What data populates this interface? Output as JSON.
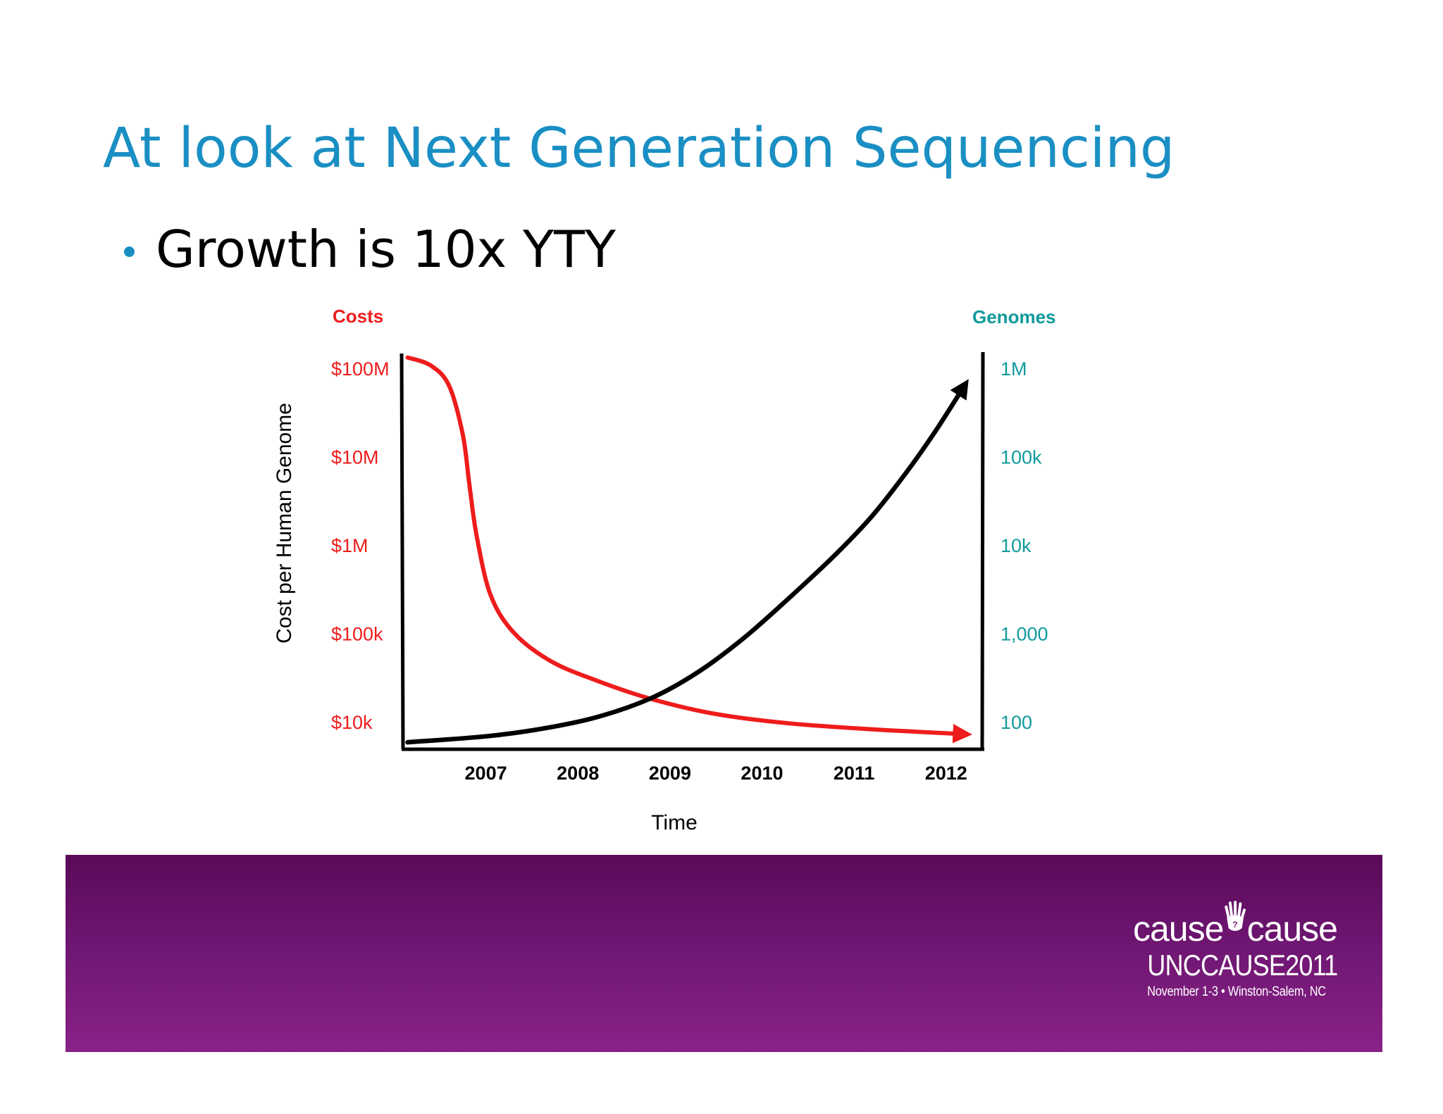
{
  "slide": {
    "title": "At look at Next Generation Sequencing",
    "bullet": "Growth is 10x YTY"
  },
  "footer": {
    "logo_word_left": "cause",
    "logo_word_right": "cause",
    "logo_event": "UNCCAUSE2011",
    "logo_date": "November 1-3 • Winston-Salem, NC",
    "colors": {
      "top": "#5a0a58",
      "bottom": "#892287"
    }
  },
  "chart_data": {
    "type": "line",
    "x_title": "Time",
    "x_ticks": [
      2007,
      2008,
      2009,
      2010,
      2011,
      2012
    ],
    "x_range": [
      2006.1,
      2012.4
    ],
    "left_axis": {
      "header": "Costs",
      "title": "Cost per Human Genome",
      "scale": "log",
      "range": [
        5000,
        150000000
      ],
      "ticks": [
        {
          "value": 100000000,
          "label": "$100M"
        },
        {
          "value": 10000000,
          "label": "$10M"
        },
        {
          "value": 1000000,
          "label": "$1M"
        },
        {
          "value": 100000,
          "label": "$100k"
        },
        {
          "value": 10000,
          "label": "$10k"
        }
      ],
      "color": "#ee1c1c"
    },
    "right_axis": {
      "header": "Genomes",
      "scale": "log",
      "range": [
        50,
        1500000
      ],
      "ticks": [
        {
          "value": 1000000,
          "label": "1M"
        },
        {
          "value": 100000,
          "label": "100k"
        },
        {
          "value": 10000,
          "label": "10k"
        },
        {
          "value": 1000,
          "label": "1,000"
        },
        {
          "value": 100,
          "label": "100"
        }
      ],
      "color": "#109a9c"
    },
    "series": [
      {
        "axis": "left",
        "color": "#ee1c1c",
        "points": [
          [
            2006.15,
            135000000
          ],
          [
            2006.4,
            110000000
          ],
          [
            2006.6,
            65000000
          ],
          [
            2006.75,
            18000000
          ],
          [
            2006.82,
            5000000
          ],
          [
            2006.9,
            1300000
          ],
          [
            2007.05,
            280000
          ],
          [
            2007.3,
            105000
          ],
          [
            2007.7,
            50000
          ],
          [
            2008.2,
            30000
          ],
          [
            2008.8,
            18500
          ],
          [
            2009.5,
            12500
          ],
          [
            2010.3,
            9800
          ],
          [
            2011.2,
            8400
          ],
          [
            2012.2,
            7400
          ]
        ]
      },
      {
        "axis": "right",
        "color": "#000000",
        "points": [
          [
            2006.15,
            60
          ],
          [
            2007.0,
            70
          ],
          [
            2007.6,
            85
          ],
          [
            2008.2,
            115
          ],
          [
            2008.8,
            190
          ],
          [
            2009.3,
            370
          ],
          [
            2009.8,
            900
          ],
          [
            2010.3,
            2600
          ],
          [
            2010.8,
            8000
          ],
          [
            2011.2,
            22000
          ],
          [
            2011.6,
            75000
          ],
          [
            2011.9,
            210000
          ],
          [
            2012.2,
            650000
          ]
        ]
      }
    ]
  }
}
